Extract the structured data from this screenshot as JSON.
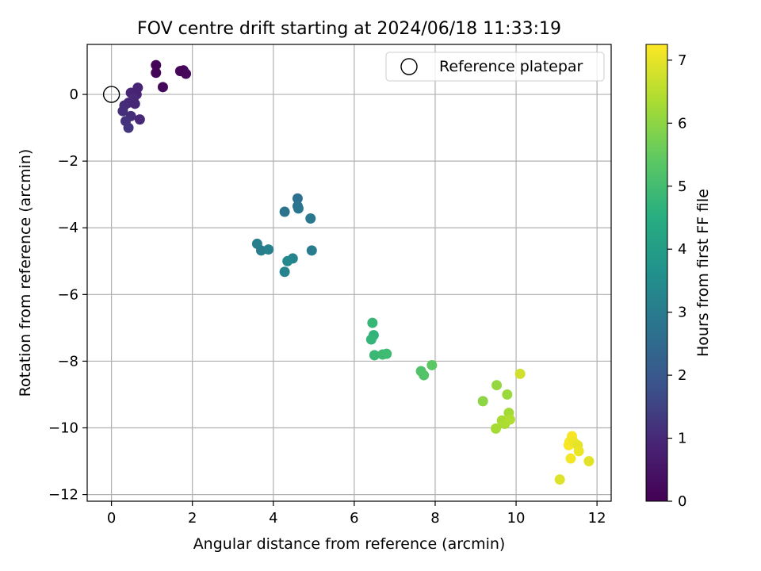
{
  "chart_data": {
    "type": "scatter",
    "title": "FOV centre drift starting at 2024/06/18 11:33:19",
    "xlabel": "Angular distance from reference (arcmin)",
    "ylabel": "Rotation from reference (arcmin)",
    "xlim": [
      -0.6,
      12.35
    ],
    "ylim": [
      -12.2,
      1.5
    ],
    "xticks": [
      0,
      2,
      4,
      6,
      8,
      10,
      12
    ],
    "yticks": [
      0,
      -2,
      -4,
      -6,
      -8,
      -10,
      -12
    ],
    "xtick_labels": [
      "0",
      "2",
      "4",
      "6",
      "8",
      "10",
      "12"
    ],
    "ytick_labels": [
      "0",
      "−2",
      "−4",
      "−6",
      "−8",
      "−10",
      "−12"
    ],
    "grid": true,
    "colormap": "viridis",
    "colorbar": {
      "label": "Hours from first FF file",
      "range": [
        0,
        7.25
      ],
      "ticks": [
        0,
        1,
        2,
        3,
        4,
        5,
        6,
        7
      ],
      "tick_labels": [
        "0",
        "1",
        "2",
        "3",
        "4",
        "5",
        "6",
        "7"
      ]
    },
    "legend": {
      "position": "top-right",
      "label": "Reference platepar"
    },
    "reference": {
      "x": 0,
      "y": 0
    },
    "points": [
      {
        "x": 1.1,
        "y": 0.88,
        "h": 0.1
      },
      {
        "x": 1.1,
        "y": 0.65,
        "h": 0.12
      },
      {
        "x": 1.78,
        "y": 0.72,
        "h": 0.15
      },
      {
        "x": 1.84,
        "y": 0.62,
        "h": 0.18
      },
      {
        "x": 1.7,
        "y": 0.7,
        "h": 0.14
      },
      {
        "x": 1.27,
        "y": 0.22,
        "h": 0.2
      },
      {
        "x": 0.65,
        "y": 0.2,
        "h": 0.9
      },
      {
        "x": 0.48,
        "y": 0.05,
        "h": 0.95
      },
      {
        "x": 0.62,
        "y": 0.0,
        "h": 0.9
      },
      {
        "x": 0.55,
        "y": -0.1,
        "h": 1.0
      },
      {
        "x": 0.42,
        "y": -0.25,
        "h": 1.0
      },
      {
        "x": 0.32,
        "y": -0.33,
        "h": 1.05
      },
      {
        "x": 0.58,
        "y": -0.28,
        "h": 0.95
      },
      {
        "x": 0.28,
        "y": -0.5,
        "h": 1.1
      },
      {
        "x": 0.48,
        "y": -0.65,
        "h": 1.1
      },
      {
        "x": 0.35,
        "y": -0.8,
        "h": 1.2
      },
      {
        "x": 0.42,
        "y": -1.0,
        "h": 1.25
      },
      {
        "x": 0.7,
        "y": -0.75,
        "h": 1.0
      },
      {
        "x": 4.6,
        "y": -3.12,
        "h": 2.7
      },
      {
        "x": 4.6,
        "y": -3.35,
        "h": 2.8
      },
      {
        "x": 4.62,
        "y": -3.42,
        "h": 2.85
      },
      {
        "x": 4.28,
        "y": -3.52,
        "h": 2.75
      },
      {
        "x": 4.92,
        "y": -3.72,
        "h": 2.9
      },
      {
        "x": 3.6,
        "y": -4.48,
        "h": 3.1
      },
      {
        "x": 3.7,
        "y": -4.68,
        "h": 3.05
      },
      {
        "x": 3.88,
        "y": -4.65,
        "h": 3.15
      },
      {
        "x": 4.48,
        "y": -4.92,
        "h": 3.25
      },
      {
        "x": 4.35,
        "y": -5.0,
        "h": 3.35
      },
      {
        "x": 4.95,
        "y": -4.68,
        "h": 3.0
      },
      {
        "x": 4.28,
        "y": -5.32,
        "h": 3.2
      },
      {
        "x": 6.45,
        "y": -6.85,
        "h": 4.8
      },
      {
        "x": 6.48,
        "y": -7.22,
        "h": 4.7
      },
      {
        "x": 6.42,
        "y": -7.35,
        "h": 4.75
      },
      {
        "x": 6.5,
        "y": -7.82,
        "h": 4.85
      },
      {
        "x": 6.7,
        "y": -7.8,
        "h": 4.9
      },
      {
        "x": 6.8,
        "y": -7.78,
        "h": 4.95
      },
      {
        "x": 7.65,
        "y": -8.3,
        "h": 5.2
      },
      {
        "x": 7.72,
        "y": -8.42,
        "h": 5.25
      },
      {
        "x": 7.92,
        "y": -8.12,
        "h": 5.4
      },
      {
        "x": 9.18,
        "y": -9.2,
        "h": 6.0
      },
      {
        "x": 9.52,
        "y": -8.72,
        "h": 6.1
      },
      {
        "x": 9.78,
        "y": -9.0,
        "h": 6.15
      },
      {
        "x": 9.82,
        "y": -9.55,
        "h": 6.25
      },
      {
        "x": 9.65,
        "y": -9.78,
        "h": 6.3
      },
      {
        "x": 9.72,
        "y": -9.88,
        "h": 6.35
      },
      {
        "x": 9.85,
        "y": -9.75,
        "h": 6.4
      },
      {
        "x": 9.5,
        "y": -10.02,
        "h": 6.3
      },
      {
        "x": 10.1,
        "y": -8.38,
        "h": 6.75
      },
      {
        "x": 11.38,
        "y": -10.25,
        "h": 7.2
      },
      {
        "x": 11.32,
        "y": -10.42,
        "h": 7.15
      },
      {
        "x": 11.3,
        "y": -10.52,
        "h": 7.2
      },
      {
        "x": 11.42,
        "y": -10.42,
        "h": 7.1
      },
      {
        "x": 11.52,
        "y": -10.52,
        "h": 7.0
      },
      {
        "x": 11.55,
        "y": -10.7,
        "h": 7.05
      },
      {
        "x": 11.35,
        "y": -10.92,
        "h": 7.15
      },
      {
        "x": 11.8,
        "y": -11.0,
        "h": 6.95
      },
      {
        "x": 11.08,
        "y": -11.55,
        "h": 6.9
      }
    ]
  }
}
